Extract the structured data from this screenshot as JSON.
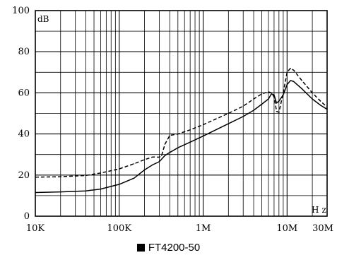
{
  "chart_data": {
    "type": "line",
    "title": "",
    "ylabel": "dB",
    "xlabel": "Hz",
    "x_scale": "log",
    "xlim": [
      10000,
      30000000
    ],
    "ylim": [
      0,
      100
    ],
    "grid": true,
    "x_ticks": [
      {
        "value": 10000,
        "label": "10K"
      },
      {
        "value": 100000,
        "label": "100K"
      },
      {
        "value": 1000000,
        "label": "1M"
      },
      {
        "value": 10000000,
        "label": "10M"
      },
      {
        "value": 30000000,
        "label": "30M"
      }
    ],
    "y_ticks": [
      0,
      20,
      40,
      60,
      80,
      100
    ],
    "series": [
      {
        "style": "dashed",
        "x": [
          10000,
          20000,
          40000,
          60000,
          100000,
          150000,
          200000,
          250000,
          300000,
          320000,
          350000,
          400000,
          500000,
          700000,
          1000000,
          2000000,
          3000000,
          4000000,
          5000000,
          6000000,
          6500000,
          7000000,
          7500000,
          8000000,
          9000000,
          10000000,
          11000000,
          12000000,
          15000000,
          20000000,
          25000000,
          30000000
        ],
        "y": [
          19,
          19.2,
          19.8,
          21,
          23,
          25.5,
          27.5,
          28.8,
          28.7,
          29.5,
          35,
          39.3,
          40,
          42,
          44.5,
          50,
          53.5,
          57,
          59.5,
          60.5,
          60,
          58,
          51,
          50.5,
          60,
          70,
          72,
          71,
          66,
          60,
          56,
          53
        ]
      },
      {
        "style": "solid",
        "x": [
          10000,
          20000,
          40000,
          60000,
          100000,
          150000,
          200000,
          250000,
          300000,
          350000,
          400000,
          500000,
          700000,
          1000000,
          2000000,
          3000000,
          4000000,
          5000000,
          6000000,
          6500000,
          7000000,
          7500000,
          8000000,
          9000000,
          10000000,
          11000000,
          12000000,
          15000000,
          20000000,
          25000000,
          30000000
        ],
        "y": [
          11.5,
          11.8,
          12.3,
          13.2,
          15.5,
          18.5,
          22.5,
          25,
          26.5,
          29.5,
          31,
          33.3,
          36,
          39,
          45,
          48.5,
          51.5,
          54.5,
          57,
          59.5,
          59,
          55,
          56,
          59,
          64,
          66,
          65.5,
          62,
          57,
          54,
          52
        ]
      }
    ]
  },
  "legend": {
    "label": "FT4200-50"
  }
}
